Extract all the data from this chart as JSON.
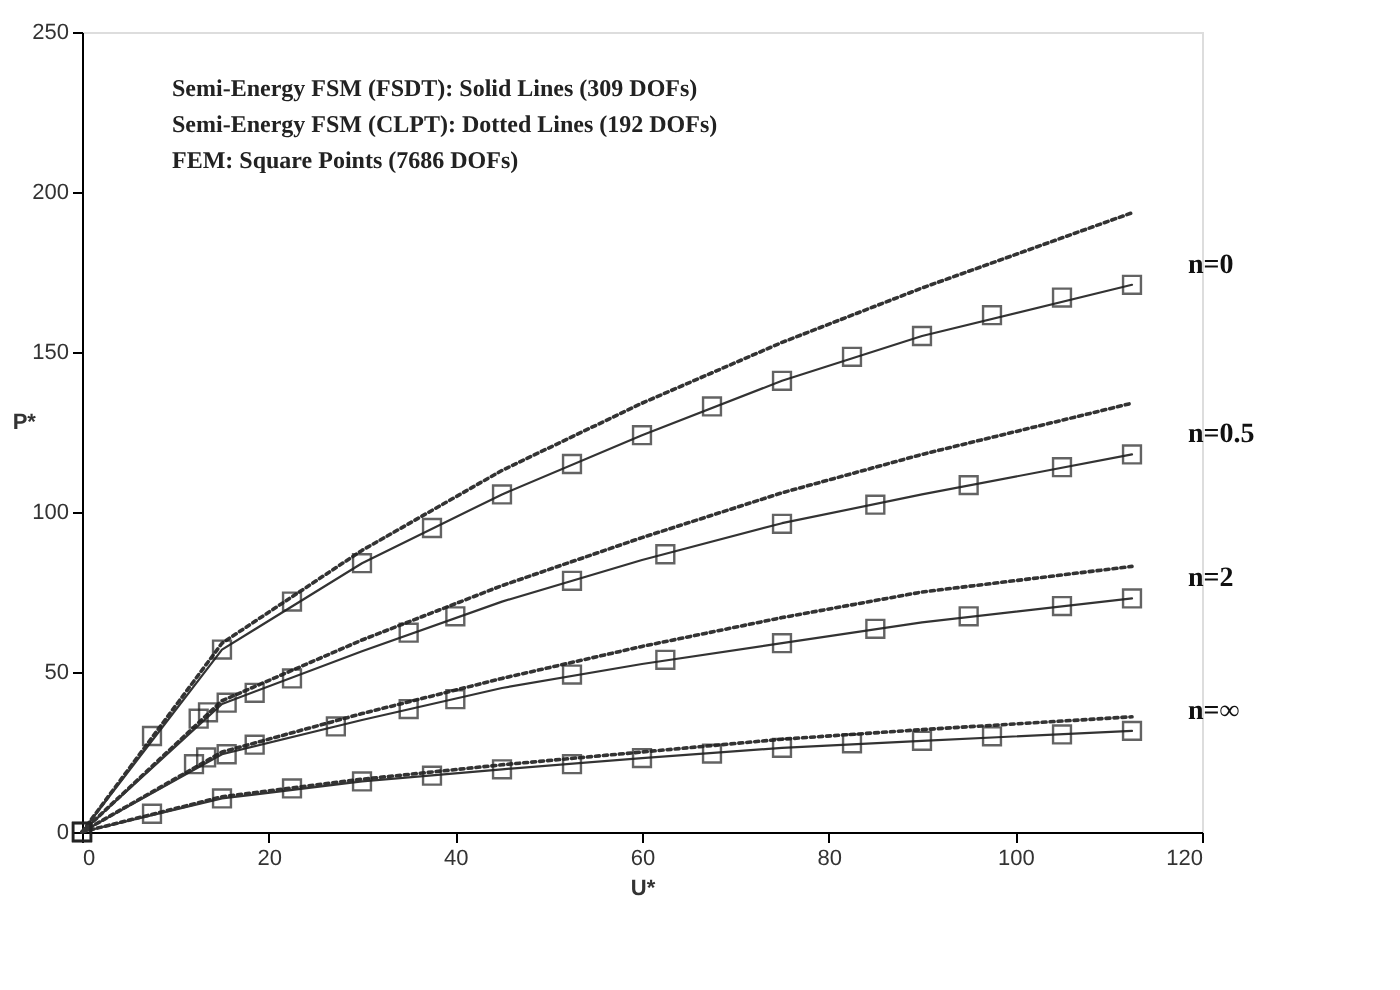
{
  "chart_data": {
    "type": "line",
    "xlabel": "U*",
    "ylabel": "P*",
    "xlim": [
      0,
      120
    ],
    "ylim": [
      0,
      250
    ],
    "xticks": [
      0,
      20,
      40,
      60,
      80,
      100,
      120
    ],
    "yticks": [
      0,
      50,
      100,
      150,
      200,
      250
    ],
    "grid": false,
    "annotations": [
      "Semi-Energy FSM (FSDT):   Solid Lines (309 DOFs)",
      "Semi-Energy FSM (CLPT):   Dotted Lines (192 DOFs)",
      "FEM:   Square Points (7686 DOFs)",
      "n=0",
      "n=0.5",
      "n=2",
      "n=∞"
    ],
    "series": [
      {
        "line_style": "dotted",
        "marker": "none",
        "color": "#333333",
        "x": [
          0,
          15,
          30,
          45,
          60,
          75,
          90,
          112.5
        ],
        "values": [
          0,
          59,
          88,
          113,
          134,
          153,
          170,
          193.5
        ]
      },
      {
        "line_style": "dotted",
        "marker": "none",
        "color": "#333333",
        "x": [
          0,
          15,
          30,
          45,
          60,
          75,
          90,
          112.5
        ],
        "values": [
          0,
          41,
          60,
          77,
          92,
          106,
          118,
          134
        ]
      },
      {
        "line_style": "dotted",
        "marker": "none",
        "color": "#333333",
        "x": [
          0,
          15,
          30,
          45,
          60,
          75,
          90,
          112.5
        ],
        "values": [
          0,
          25,
          37,
          48,
          58,
          67,
          75,
          83
        ]
      },
      {
        "line_style": "dotted",
        "marker": "none",
        "color": "#333333",
        "x": [
          0,
          15,
          30,
          45,
          60,
          75,
          90,
          112.5
        ],
        "values": [
          0,
          11,
          16.5,
          21,
          25,
          29,
          32,
          36
        ]
      },
      {
        "line_style": "solid",
        "marker": "none",
        "color": "#333333",
        "x": [
          0,
          15,
          30,
          45,
          60,
          75,
          90,
          112.5
        ],
        "values": [
          0,
          57,
          84,
          105.5,
          124,
          141,
          155,
          171
        ]
      },
      {
        "line_style": "solid",
        "marker": "none",
        "color": "#333333",
        "x": [
          0,
          15,
          30,
          45,
          60,
          75,
          90,
          112.5
        ],
        "values": [
          0,
          40,
          56.5,
          72,
          85,
          96.5,
          105.5,
          118
        ]
      },
      {
        "line_style": "solid",
        "marker": "none",
        "color": "#333333",
        "x": [
          0,
          15,
          30,
          45,
          60,
          75,
          90,
          112.5
        ],
        "values": [
          0,
          24.3,
          35,
          45,
          52.5,
          59,
          65.5,
          73
        ]
      },
      {
        "line_style": "solid",
        "marker": "none",
        "color": "#333333",
        "x": [
          0,
          15,
          30,
          45,
          60,
          75,
          90,
          112.5
        ],
        "values": [
          0,
          10.5,
          15.8,
          19.6,
          23.1,
          26.3,
          28.5,
          31.6
        ]
      },
      {
        "type": "scatter",
        "marker": "square",
        "color": "#222222",
        "x": [
          0,
          7.5,
          15,
          22.5,
          30,
          37.5,
          45,
          52.5,
          60,
          67.5,
          75,
          82.5,
          90,
          97.5,
          105,
          112.5
        ],
        "values": [
          0,
          30,
          57,
          72,
          84,
          95,
          105.5,
          115,
          124,
          133,
          141,
          148.5,
          155,
          161.5,
          167,
          171
        ]
      },
      {
        "type": "scatter",
        "marker": "square",
        "color": "#222222",
        "x": [
          0,
          12.5,
          13.5,
          15.5,
          18.5,
          22.5,
          35,
          40,
          52.5,
          62.5,
          75,
          85,
          95,
          105,
          112.5
        ],
        "values": [
          0,
          35.4,
          37.4,
          40.4,
          43.5,
          48,
          62.3,
          67.4,
          78.5,
          86.8,
          96.3,
          102.3,
          108.4,
          114,
          118
        ]
      },
      {
        "type": "scatter",
        "marker": "square",
        "color": "#222222",
        "x": [
          0,
          12,
          13.3,
          15.5,
          18.5,
          27.2,
          35,
          40,
          52.5,
          62.5,
          75,
          85,
          95,
          105,
          112.5
        ],
        "values": [
          0,
          21.2,
          23.3,
          24.3,
          27.3,
          33,
          38.4,
          41.5,
          49.2,
          53.8,
          59,
          63.5,
          67.4,
          70.6,
          73
        ]
      },
      {
        "type": "scatter",
        "marker": "square",
        "color": "#222222",
        "x": [
          0,
          7.5,
          15,
          22.5,
          30,
          37.5,
          45,
          52.5,
          60,
          67.5,
          75,
          82.5,
          90,
          97.5,
          105,
          112.5
        ],
        "values": [
          0,
          5.7,
          10.5,
          13.6,
          15.8,
          17.6,
          19.6,
          21.2,
          23.1,
          24.5,
          26.3,
          27.7,
          28.5,
          29.9,
          30.5,
          31.6
        ]
      }
    ]
  }
}
